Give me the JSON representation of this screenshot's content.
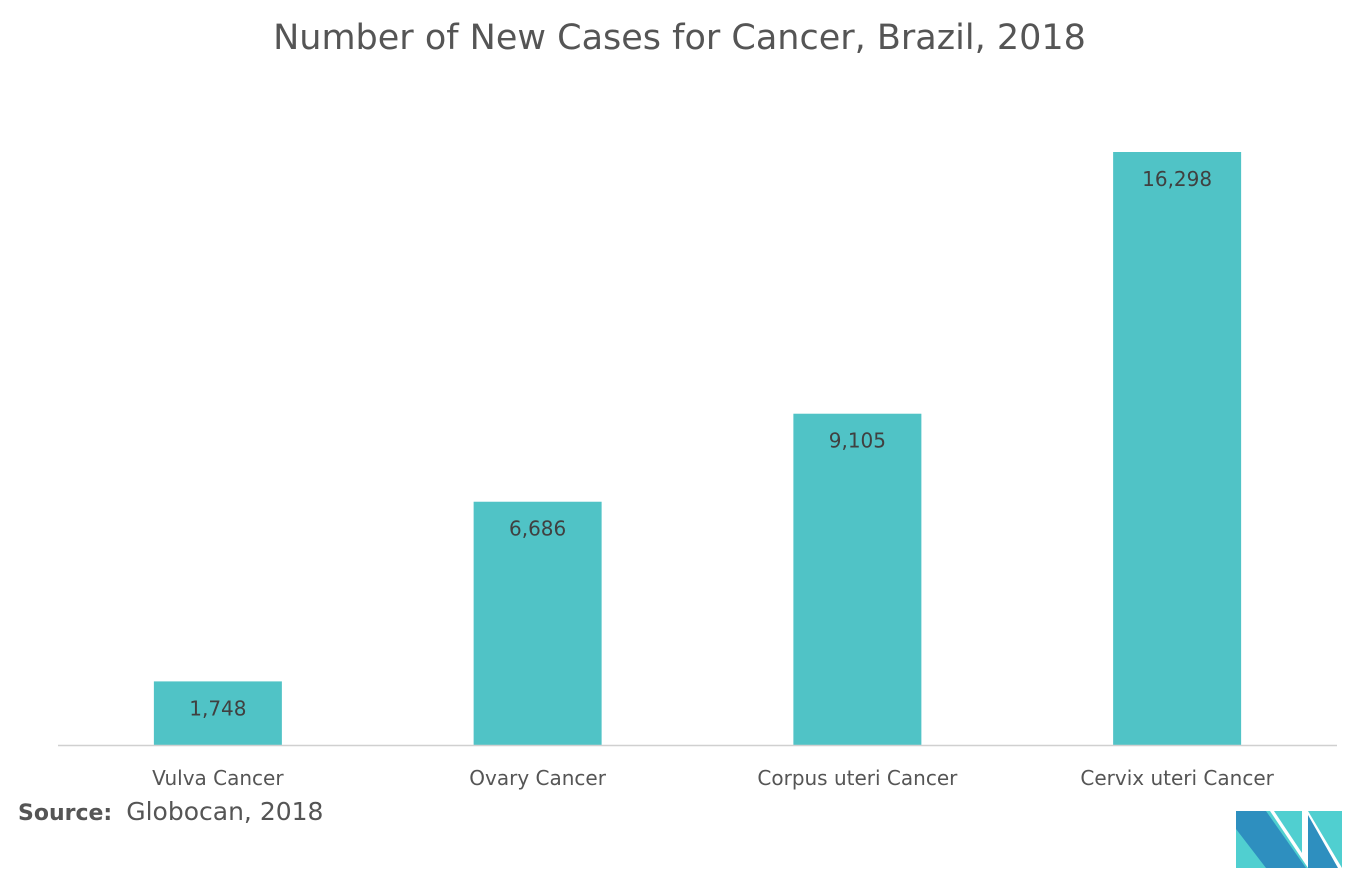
{
  "chart_data": {
    "type": "bar",
    "title": "Number of New Cases for Cancer, Brazil, 2018",
    "categories": [
      "Vulva Cancer",
      "Ovary Cancer",
      "Corpus uteri Cancer",
      "Cervix uteri Cancer"
    ],
    "values": [
      1748,
      6686,
      9105,
      16298
    ],
    "data_labels": [
      "1,748",
      "6,686",
      "9,105",
      "16,298"
    ],
    "xlabel": "",
    "ylabel": "",
    "ylim": [
      0,
      16298
    ],
    "grid": false,
    "y_axis_shown": false,
    "bar_color": "#50C3C6"
  },
  "source": {
    "label": "Source:",
    "text": "Globocan, 2018"
  },
  "logo": {
    "colors": [
      "#2E8FBF",
      "#50CFD0"
    ]
  }
}
